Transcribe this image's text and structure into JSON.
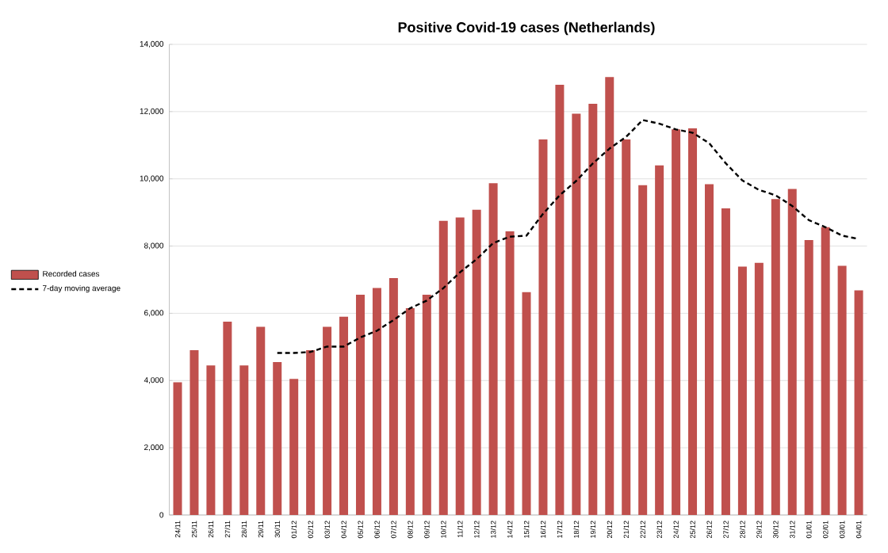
{
  "chart_data": {
    "type": "bar",
    "title": "Positive Covid-19 cases (Netherlands)",
    "categories": [
      "24/11",
      "25/11",
      "26/11",
      "27/11",
      "28/11",
      "29/11",
      "30/11",
      "01/12",
      "02/12",
      "03/12",
      "04/12",
      "05/12",
      "06/12",
      "07/12",
      "08/12",
      "09/12",
      "10/12",
      "11/12",
      "12/12",
      "13/12",
      "14/12",
      "15/12",
      "16/12",
      "17/12",
      "18/12",
      "19/12",
      "20/12",
      "21/12",
      "22/12",
      "23/12",
      "24/12",
      "25/12",
      "26/12",
      "27/12",
      "28/12",
      "29/12",
      "30/12",
      "31/12",
      "01/01",
      "02/01",
      "03/01",
      "04/01"
    ],
    "series": [
      {
        "name": "Recorded cases",
        "color": "#c0504d",
        "values": [
          3950,
          4900,
          4450,
          5750,
          4450,
          5600,
          4550,
          4050,
          4900,
          5600,
          5900,
          6550,
          6750,
          7050,
          6150,
          6550,
          8750,
          8850,
          9080,
          9870,
          8440,
          6630,
          11170,
          12800,
          11940,
          12230,
          13030,
          11170,
          9810,
          10400,
          11470,
          11500,
          9840,
          9120,
          7390,
          7500,
          9400,
          9700,
          8180,
          8560,
          7410,
          6680
        ]
      },
      {
        "name": "7-day moving average",
        "type": "line",
        "color": "#000000",
        "line_style": "dashed",
        "values": [
          null,
          null,
          null,
          null,
          null,
          null,
          4820,
          4820,
          4850,
          5010,
          5010,
          5280,
          5480,
          5800,
          6150,
          6380,
          6750,
          7220,
          7610,
          8090,
          8280,
          8310,
          8960,
          9510,
          9940,
          10460,
          10900,
          11250,
          11750,
          11640,
          11470,
          11370,
          11060,
          10460,
          9950,
          9670,
          9510,
          9190,
          8770,
          8560,
          8310,
          8210
        ]
      }
    ],
    "ylim": [
      0,
      14000
    ],
    "yticks": [
      {
        "value": 0,
        "label": "0"
      },
      {
        "value": 2000,
        "label": "2,000"
      },
      {
        "value": 4000,
        "label": "4,000"
      },
      {
        "value": 6000,
        "label": "6,000"
      },
      {
        "value": 8000,
        "label": "8,000"
      },
      {
        "value": 10000,
        "label": "10,000"
      },
      {
        "value": 12000,
        "label": "12,000"
      },
      {
        "value": 14000,
        "label": "14,000"
      }
    ],
    "grid": "y",
    "legend": "left",
    "marker": "none"
  }
}
